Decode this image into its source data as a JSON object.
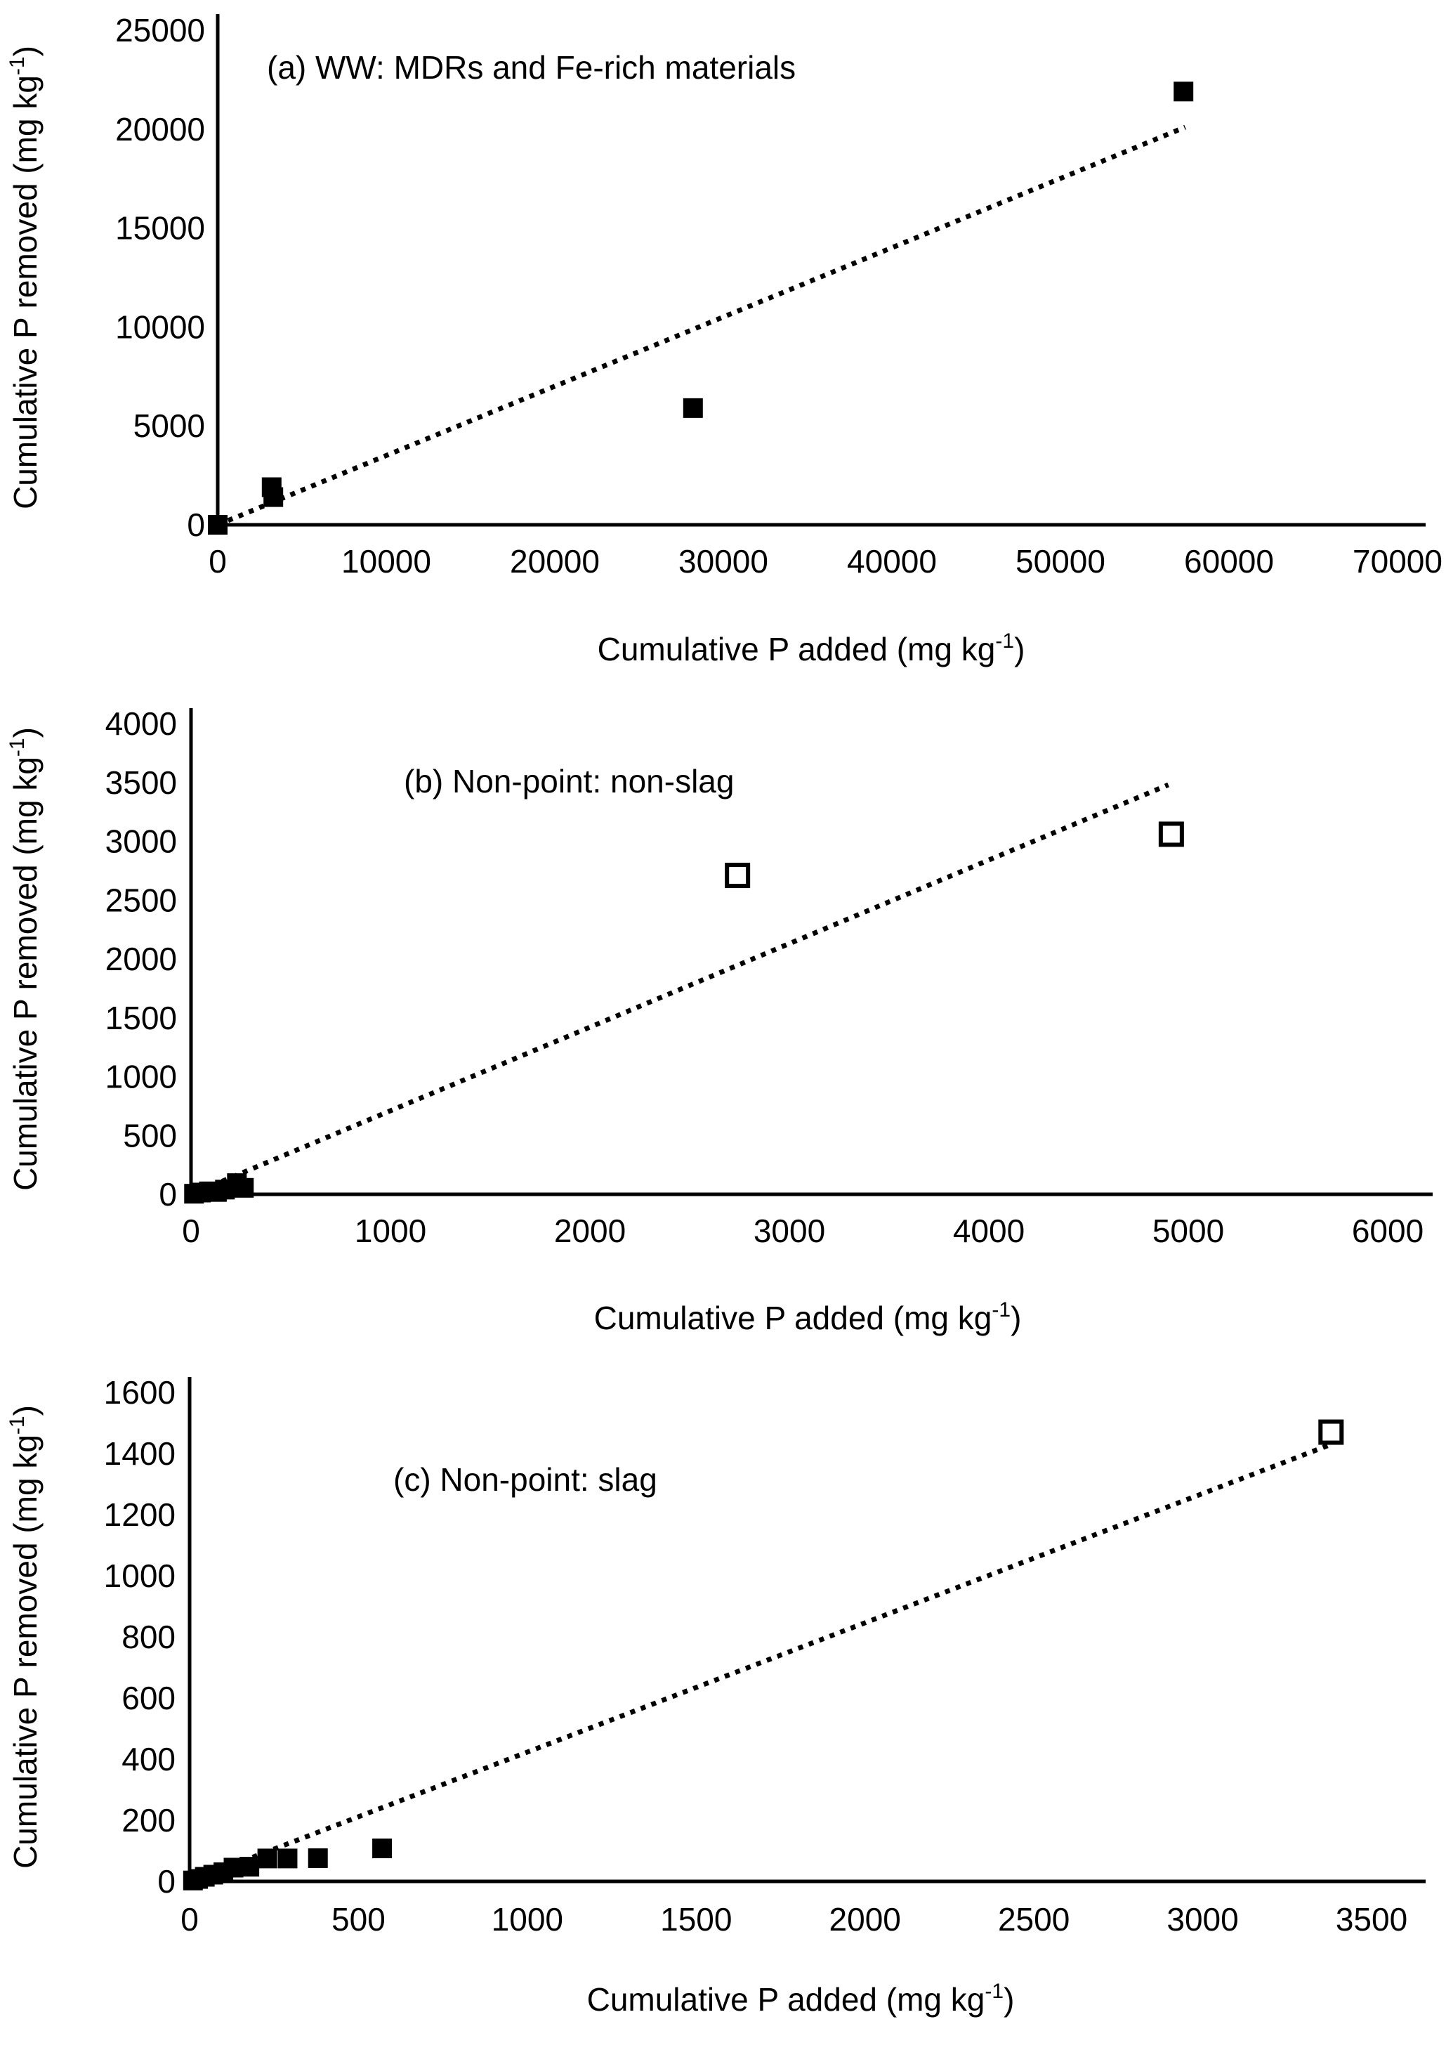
{
  "figure": {
    "background": "#ffffff",
    "ink": "#000000",
    "description": "Three stacked scatter panels of cumulative P removed vs cumulative P added with dotted 1-parameter trend lines"
  },
  "chart_data": [
    {
      "id": "a",
      "type": "scatter",
      "title": "(a) WW: MDRs and Fe-rich materials",
      "xlabel": {
        "pre": "Cumulative P added (mg kg",
        "sup": "-1",
        "post": ")"
      },
      "ylabel": {
        "pre": "Cumulative P removed (mg kg",
        "sup": "-1",
        "post": ")"
      },
      "xlim": [
        0,
        70000
      ],
      "ylim": [
        0,
        25000
      ],
      "xticks": [
        0,
        10000,
        20000,
        30000,
        40000,
        50000,
        60000,
        70000
      ],
      "yticks": [
        0,
        5000,
        10000,
        15000,
        20000,
        25000
      ],
      "grid": false,
      "legend": "none",
      "series": [
        {
          "name": "filled-square-points",
          "marker": "filled-square",
          "points": [
            [
              0,
              0
            ],
            [
              3200,
              1900
            ],
            [
              3300,
              1400
            ],
            [
              28200,
              5900
            ],
            [
              57300,
              21900
            ]
          ]
        },
        {
          "name": "open-square-points",
          "marker": "open-square",
          "points": []
        }
      ],
      "trendline": {
        "style": "dotted",
        "from": [
          0,
          0
        ],
        "to": [
          57400,
          20100
        ]
      }
    },
    {
      "id": "b",
      "type": "scatter",
      "title": "(b) Non-point: non-slag",
      "xlabel": {
        "pre": "Cumulative P added (mg kg",
        "sup": "-1",
        "post": ")"
      },
      "ylabel": {
        "pre": "Cumulative P removed (mg kg",
        "sup": "-1",
        "post": ")"
      },
      "xlim": [
        0,
        6000
      ],
      "ylim": [
        0,
        4000
      ],
      "xticks": [
        0,
        1000,
        2000,
        3000,
        4000,
        5000,
        6000
      ],
      "yticks": [
        0,
        500,
        1000,
        1500,
        2000,
        2500,
        3000,
        3500,
        4000
      ],
      "grid": false,
      "legend": "none",
      "series": [
        {
          "name": "filled-square-points",
          "marker": "filled-square",
          "points": [
            [
              15,
              5
            ],
            [
              50,
              15
            ],
            [
              90,
              25
            ],
            [
              130,
              20
            ],
            [
              170,
              40
            ],
            [
              230,
              95
            ],
            [
              265,
              55
            ]
          ]
        },
        {
          "name": "open-square-points",
          "marker": "open-square",
          "points": [
            [
              2740,
              2710
            ],
            [
              4915,
              3060
            ]
          ]
        }
      ],
      "trendline": {
        "style": "dotted",
        "from": [
          0,
          0
        ],
        "to": [
          4900,
          3480
        ]
      }
    },
    {
      "id": "c",
      "type": "scatter",
      "title": "(c) Non-point: slag",
      "xlabel": {
        "pre": "Cumulative P added (mg kg",
        "sup": "-1",
        "post": ")"
      },
      "ylabel": {
        "pre": "Cumulative P removed (mg kg",
        "sup": "-1",
        "post": ")"
      },
      "xlim": [
        0,
        3500
      ],
      "ylim": [
        0,
        1600
      ],
      "xticks": [
        0,
        500,
        1000,
        1500,
        2000,
        2500,
        3000,
        3500
      ],
      "yticks": [
        0,
        200,
        400,
        600,
        800,
        1000,
        1200,
        1400,
        1600
      ],
      "grid": false,
      "legend": "none",
      "series": [
        {
          "name": "filled-square-points",
          "marker": "filled-square",
          "points": [
            [
              10,
              3
            ],
            [
              25,
              8
            ],
            [
              45,
              15
            ],
            [
              70,
              22
            ],
            [
              100,
              30
            ],
            [
              130,
              45
            ],
            [
              177,
              48
            ],
            [
              230,
              75
            ],
            [
              290,
              75
            ],
            [
              380,
              76
            ],
            [
              570,
              108
            ]
          ]
        },
        {
          "name": "open-square-points",
          "marker": "open-square",
          "points": [
            [
              3380,
              1470
            ]
          ]
        }
      ],
      "trendline": {
        "style": "dotted",
        "from": [
          0,
          0
        ],
        "to": [
          3380,
          1430
        ]
      }
    }
  ]
}
